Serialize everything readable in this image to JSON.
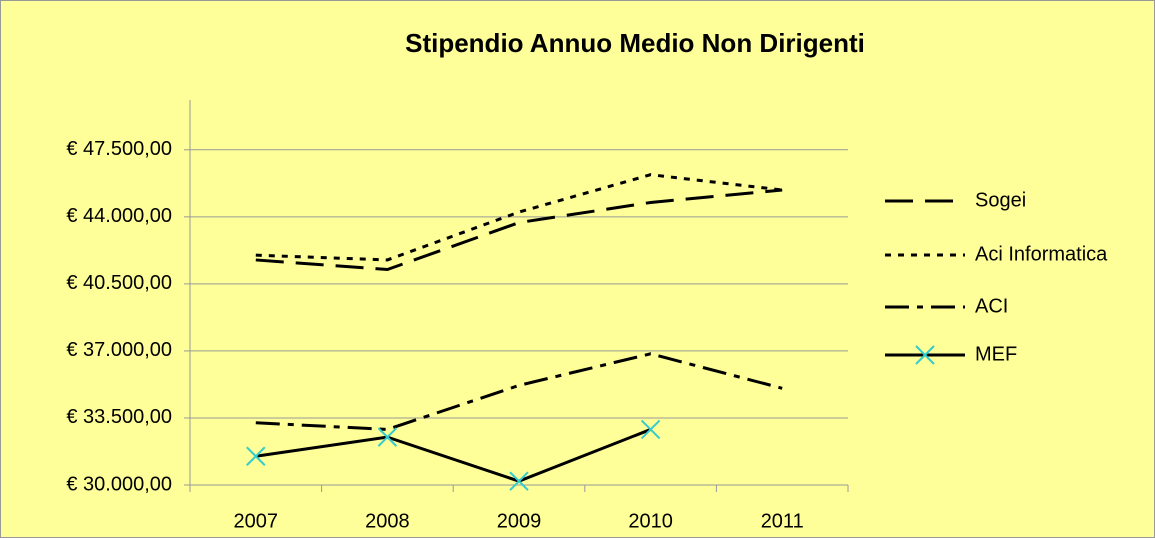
{
  "chart_data": {
    "type": "line",
    "title": "Stipendio Annuo Medio Non Dirigenti",
    "categories": [
      "2007",
      "2008",
      "2009",
      "2010",
      "2011"
    ],
    "series": [
      {
        "name": "Sogei",
        "color": "#000000",
        "dash": "long-dash",
        "values": [
          41750,
          41250,
          43700,
          44750,
          45400
        ]
      },
      {
        "name": "Aci Informatica",
        "color": "#000000",
        "dash": "dot",
        "values": [
          42000,
          41750,
          44250,
          46200,
          45400
        ]
      },
      {
        "name": "ACI",
        "color": "#000000",
        "dash": "dash-dot",
        "values": [
          33250,
          32900,
          35200,
          36850,
          35050
        ]
      },
      {
        "name": "MEF",
        "color": "#000000",
        "dash": "solid",
        "marker": "x",
        "marker_color": "#33cccc",
        "values": [
          31500,
          32500,
          30200,
          32900,
          null
        ]
      }
    ],
    "ylim": [
      30000,
      50100
    ],
    "yticks": [
      {
        "value": 30000,
        "label": "€ 30.000,00"
      },
      {
        "value": 33500,
        "label": "€ 33.500,00"
      },
      {
        "value": 37000,
        "label": "€ 37.000,00"
      },
      {
        "value": 40500,
        "label": "€ 40.500,00"
      },
      {
        "value": 44000,
        "label": "€ 44.000,00"
      },
      {
        "value": 47500,
        "label": "€ 47.500,00"
      }
    ],
    "grid": true,
    "legend": "right",
    "background": "#ffff99"
  }
}
